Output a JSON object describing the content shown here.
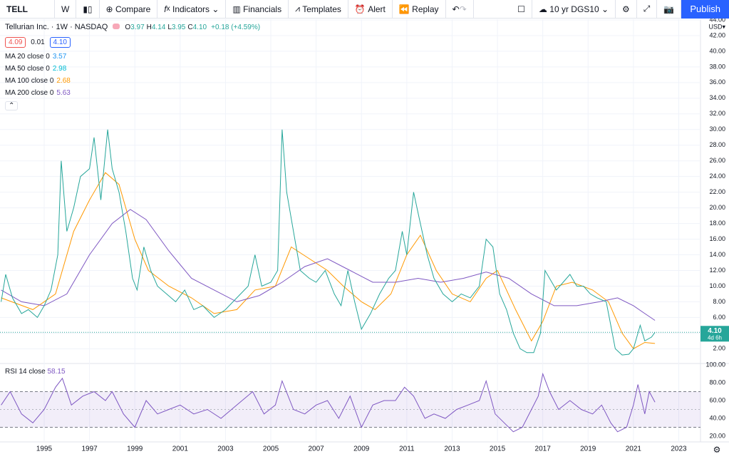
{
  "toolbar": {
    "symbol": "TELL",
    "interval": "W",
    "compare": "Compare",
    "indicators": "Indicators",
    "financials": "Financials",
    "templates": "Templates",
    "alert": "Alert",
    "replay": "Replay",
    "overlay": "10 yr DGS10",
    "publish": "Publish"
  },
  "header": {
    "title": "Tellurian Inc. · 1W · NASDAQ",
    "ohlc": [
      [
        "O",
        "3.97"
      ],
      [
        "H",
        "4.14"
      ],
      [
        "L",
        "3.95"
      ],
      [
        "C",
        "4.10"
      ]
    ],
    "change": "+0.18 (+4.59%)",
    "bid": "4.09",
    "spread": "0.01",
    "ask": "4.10",
    "currency": "USD▾",
    "price_tag": "4.10",
    "countdown": "4d 6h"
  },
  "chart_data": [
    {
      "type": "line",
      "color": "#26a69a",
      "x": [
        1993.1,
        1993.3,
        1993.6,
        1994.0,
        1994.3,
        1994.7,
        1995.0,
        1995.3,
        1995.6,
        1995.75,
        1996.0,
        1996.3,
        1996.6,
        1997.0,
        1997.2,
        1997.5,
        1997.8,
        1998.0,
        1998.3,
        1998.6,
        1998.9,
        1999.1,
        1999.4,
        1999.7,
        2000.0,
        2000.4,
        2000.8,
        2001.2,
        2001.6,
        2002.0,
        2002.5,
        2003.0,
        2003.5,
        2004.0,
        2004.3,
        2004.6,
        2005.0,
        2005.3,
        2005.5,
        2005.7,
        2006.0,
        2006.3,
        2006.7,
        2007.0,
        2007.4,
        2007.8,
        2008.1,
        2008.4,
        2008.7,
        2009.0,
        2009.4,
        2009.8,
        2010.2,
        2010.5,
        2010.8,
        2011.0,
        2011.3,
        2011.6,
        2011.9,
        2012.2,
        2012.6,
        2013.0,
        2013.4,
        2013.8,
        2014.2,
        2014.5,
        2014.8,
        2015.1,
        2015.4,
        2015.7,
        2016.0,
        2016.3,
        2016.6,
        2016.9,
        2017.1,
        2017.3,
        2017.6,
        2017.9,
        2018.2,
        2018.5,
        2018.8,
        2019.1,
        2019.4,
        2019.8,
        2020.0,
        2020.2,
        2020.5,
        2020.8,
        2021.0,
        2021.3,
        2021.5,
        2021.8,
        2021.95
      ],
      "values": [
        8,
        11.5,
        8.5,
        6.5,
        7,
        6,
        7.5,
        9.5,
        14,
        26,
        17,
        20,
        24,
        25,
        29,
        21,
        30,
        25,
        22,
        17,
        11,
        9.5,
        15,
        12,
        10,
        9,
        8,
        9.5,
        7,
        7.5,
        6,
        7,
        8.5,
        10,
        14,
        10,
        10.5,
        12,
        30,
        22,
        17,
        12,
        11,
        10.5,
        12,
        9,
        7.5,
        12,
        8,
        4.5,
        6.5,
        9,
        11,
        12,
        17,
        14,
        22,
        18,
        14,
        11,
        9,
        8,
        9,
        8.5,
        10,
        16,
        15,
        9,
        7,
        4,
        2,
        1.5,
        1.5,
        4,
        12,
        11,
        9.5,
        10.5,
        11.5,
        10,
        10,
        9,
        8.5,
        8,
        5,
        2,
        1.2,
        1.3,
        2,
        5,
        3,
        3.5,
        4.1
      ],
      "indicators": [
        {
          "name": "MA 20 close 0",
          "last": 3.57,
          "color": "#2196f3"
        },
        {
          "name": "MA 50 close 0",
          "last": 2.98,
          "color": "#00bcd4"
        },
        {
          "name": "MA 100 close 0",
          "last": 2.68,
          "color": "#ff9800",
          "x": [
            1993.1,
            1994.5,
            1995.5,
            1996.3,
            1997.0,
            1997.7,
            1998.3,
            1999.0,
            1999.6,
            2000.5,
            2001.5,
            2002.5,
            2003.5,
            2004.3,
            2005.2,
            2005.9,
            2006.7,
            2007.5,
            2008.2,
            2009.0,
            2009.6,
            2010.3,
            2011.0,
            2011.6,
            2012.3,
            2013.0,
            2013.8,
            2014.5,
            2015.0,
            2015.8,
            2016.5,
            2017.0,
            2017.6,
            2018.3,
            2019.2,
            2019.9,
            2020.5,
            2021.0,
            2021.5,
            2021.95
          ],
          "values": [
            8.5,
            7,
            9,
            17,
            21,
            24.5,
            23,
            16,
            12,
            10,
            8.5,
            6.5,
            7,
            9.5,
            10,
            15,
            13.5,
            12,
            10,
            8,
            7,
            9,
            14,
            16.5,
            12,
            9,
            8,
            11,
            12,
            7,
            3,
            5.5,
            10,
            10.5,
            9.5,
            8,
            4,
            2,
            2.8,
            2.68
          ]
        },
        {
          "name": "MA 200 close 0",
          "last": 5.63,
          "color": "#7e57c2",
          "x": [
            1993.1,
            1994.0,
            1995.0,
            1996.0,
            1997.0,
            1998.0,
            1998.8,
            1999.5,
            2000.5,
            2001.5,
            2002.5,
            2003.5,
            2004.5,
            2005.5,
            2006.5,
            2007.5,
            2008.5,
            2009.5,
            2010.5,
            2011.5,
            2012.5,
            2013.5,
            2014.5,
            2015.5,
            2016.5,
            2017.5,
            2018.5,
            2019.5,
            2020.3,
            2021.0,
            2021.5,
            2021.95
          ],
          "values": [
            9.5,
            8,
            7.5,
            9,
            14,
            18,
            19.8,
            18.5,
            14.5,
            11,
            9.5,
            8,
            8.8,
            10.5,
            12.5,
            13.5,
            12,
            10.5,
            10.5,
            11,
            10.5,
            11,
            11.8,
            11,
            9,
            7.5,
            7.5,
            8,
            8.5,
            7.5,
            6.5,
            5.63
          ]
        }
      ],
      "xlim": [
        1993.05,
        2023.96
      ],
      "xticks": [
        1995,
        1997,
        1999,
        2001,
        2003,
        2005,
        2007,
        2009,
        2011,
        2013,
        2015,
        2017,
        2019,
        2021,
        2023
      ],
      "ylim": [
        0.3,
        44.0
      ],
      "yticks": [
        {
          "value": 2,
          "label": "2.00"
        },
        {
          "value": 4,
          "label": "4.00"
        },
        {
          "value": 6,
          "label": "6.00"
        },
        {
          "value": 8,
          "label": "8.00"
        },
        {
          "value": 10,
          "label": "10.00"
        },
        {
          "value": 12,
          "label": "12.00"
        },
        {
          "value": 14,
          "label": "14.00"
        },
        {
          "value": 16,
          "label": "16.00"
        },
        {
          "value": 18,
          "label": "18.00"
        },
        {
          "value": 20,
          "label": "20.00"
        },
        {
          "value": 22,
          "label": "22.00"
        },
        {
          "value": 24,
          "label": "24.00"
        },
        {
          "value": 26,
          "label": "26.00"
        },
        {
          "value": 28,
          "label": "28.00"
        },
        {
          "value": 30,
          "label": "30.00"
        },
        {
          "value": 32,
          "label": "32.00"
        },
        {
          "value": 34,
          "label": "34.00"
        },
        {
          "value": 36,
          "label": "36.00"
        },
        {
          "value": 38,
          "label": "38.00"
        },
        {
          "value": 40,
          "label": "40.00"
        },
        {
          "value": 42,
          "label": "42.00"
        },
        {
          "value": 44,
          "label": "44.00"
        }
      ],
      "grid": true
    },
    {
      "type": "line",
      "title": "RSI 14 close",
      "last": 58.15,
      "color": "#7e57c2",
      "x": [
        1993.1,
        1993.5,
        1994.0,
        1994.5,
        1995.0,
        1995.5,
        1995.8,
        1996.2,
        1996.7,
        1997.2,
        1997.7,
        1998.0,
        1998.5,
        1999.0,
        1999.5,
        2000.0,
        2000.5,
        2001.0,
        2001.6,
        2002.2,
        2002.8,
        2003.5,
        2004.2,
        2004.7,
        2005.2,
        2005.5,
        2006.0,
        2006.5,
        2007.0,
        2007.5,
        2008.0,
        2008.5,
        2009.0,
        2009.5,
        2010.0,
        2010.5,
        2010.9,
        2011.3,
        2011.8,
        2012.2,
        2012.7,
        2013.2,
        2013.7,
        2014.2,
        2014.5,
        2014.9,
        2015.3,
        2015.7,
        2016.1,
        2016.5,
        2016.8,
        2017.0,
        2017.3,
        2017.7,
        2018.2,
        2018.7,
        2019.2,
        2019.6,
        2020.0,
        2020.3,
        2020.7,
        2021.0,
        2021.2,
        2021.5,
        2021.7,
        2021.95
      ],
      "values": [
        55,
        70,
        45,
        35,
        50,
        75,
        85,
        55,
        65,
        70,
        60,
        70,
        45,
        30,
        60,
        45,
        50,
        55,
        45,
        50,
        40,
        55,
        70,
        45,
        55,
        82,
        50,
        45,
        55,
        60,
        40,
        65,
        30,
        55,
        60,
        60,
        75,
        65,
        40,
        45,
        40,
        50,
        55,
        60,
        82,
        45,
        35,
        25,
        30,
        50,
        65,
        90,
        70,
        50,
        60,
        50,
        45,
        55,
        35,
        25,
        30,
        55,
        78,
        45,
        70,
        58.15
      ],
      "band": [
        30,
        70
      ],
      "middle": 50,
      "ylim": [
        13.6,
        100
      ],
      "yticks": [
        {
          "value": 20,
          "label": "20.00"
        },
        {
          "value": 40,
          "label": "40.00"
        },
        {
          "value": 60,
          "label": "60.00"
        },
        {
          "value": 80,
          "label": "80.00"
        },
        {
          "value": 100,
          "label": "100.00"
        }
      ]
    }
  ]
}
